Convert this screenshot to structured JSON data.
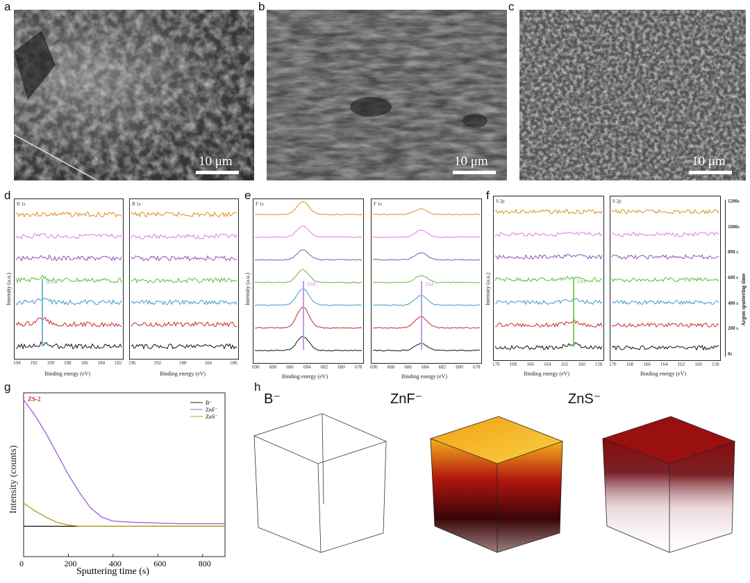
{
  "panels": {
    "a": "a",
    "b": "b",
    "c": "c",
    "d": "d",
    "e": "e",
    "f": "f",
    "g": "g",
    "h": "h"
  },
  "sem": {
    "scale_label": "10 μm"
  },
  "xps": {
    "panel_d": [
      {
        "title": "B 1s",
        "xlabel": "Binding energy (eV)",
        "ticks": [
          "194",
          "192",
          "190",
          "188",
          "186",
          "184",
          "182"
        ],
        "annotation": "B-O"
      },
      {
        "title": "B 1s",
        "xlabel": "Binding energy (eV)",
        "ticks": [
          "196",
          "192",
          "188",
          "184",
          "180"
        ],
        "annotation": ""
      }
    ],
    "panel_e": [
      {
        "title": "F 1s",
        "xlabel": "Binding energy (eV)",
        "ticks": [
          "690",
          "688",
          "686",
          "684",
          "682",
          "680",
          "678"
        ],
        "annotation": "ZnF₂"
      },
      {
        "title": "F 1s",
        "xlabel": "Binding energy (eV)",
        "ticks": [
          "690",
          "688",
          "686",
          "684",
          "682",
          "680",
          "678"
        ],
        "annotation": "ZnF₂"
      }
    ],
    "panel_f": [
      {
        "title": "S 2p",
        "xlabel": "Binding energy (eV)",
        "ticks": [
          "170",
          "168",
          "166",
          "164",
          "162",
          "160",
          "158"
        ],
        "annotation": "ZnS"
      },
      {
        "title": "S 2p",
        "xlabel": "Binding energy (eV)",
        "ticks": [
          "170",
          "168",
          "166",
          "164",
          "162",
          "160",
          "158"
        ],
        "annotation": ""
      }
    ],
    "ylabel": "Intensity (a.u.)",
    "time_axis_title": "Argon sputtering time",
    "time_ticks": [
      "1200s",
      "1000s",
      "800 s",
      "600 s",
      "400 s",
      "200 s",
      "0s"
    ],
    "series_colors": [
      "#e08a1e",
      "#e27ae0",
      "#8e4fb5",
      "#5fb83a",
      "#3a9ac4",
      "#c42a2a",
      "#111111"
    ]
  },
  "chart_data": {
    "type": "line",
    "sample_label": "ZS-2",
    "xlabel": "Sputtering time (s)",
    "ylabel": "Intensity (counts)",
    "xlim": [
      0,
      900
    ],
    "xticks": [
      "0",
      "200",
      "400",
      "600",
      "800"
    ],
    "series": [
      {
        "name": "B⁻",
        "color": "#222222",
        "x": [
          0,
          100,
          200,
          300,
          400,
          500,
          600,
          700,
          800,
          900
        ],
        "y": [
          0.02,
          0.02,
          0.02,
          0.02,
          0.02,
          0.02,
          0.02,
          0.02,
          0.02,
          0.02
        ]
      },
      {
        "name": "ZnF⁻",
        "color": "#a066d8",
        "x": [
          0,
          50,
          100,
          150,
          200,
          250,
          300,
          350,
          400,
          500,
          600,
          700,
          800,
          900
        ],
        "y": [
          1.0,
          0.88,
          0.74,
          0.58,
          0.42,
          0.28,
          0.16,
          0.09,
          0.06,
          0.05,
          0.045,
          0.04,
          0.04,
          0.04
        ]
      },
      {
        "name": "ZnS⁻",
        "color": "#b8a020",
        "x": [
          0,
          50,
          100,
          150,
          200,
          250,
          300,
          400,
          600,
          800,
          900
        ],
        "y": [
          0.2,
          0.14,
          0.09,
          0.05,
          0.03,
          0.02,
          0.02,
          0.02,
          0.02,
          0.02,
          0.02
        ]
      }
    ]
  },
  "tof": {
    "labels": [
      "B⁻",
      "ZnF⁻",
      "ZnS⁻"
    ]
  }
}
